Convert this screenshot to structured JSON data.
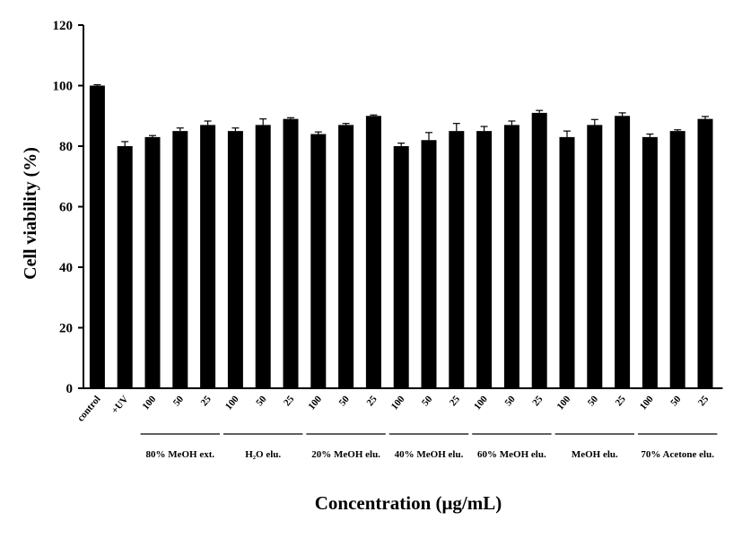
{
  "chart_data": {
    "type": "bar",
    "title": "",
    "ylabel": "Cell viability (%)",
    "xlabel": "Concentration (μg/mL)",
    "ylim": [
      0,
      120
    ],
    "yticks": [
      "0",
      "20",
      "40",
      "60",
      "80",
      "100",
      "120"
    ],
    "grid": false,
    "legend": "none",
    "bar_color": "#000000",
    "categories": [
      "control",
      "+UV",
      "100",
      "50",
      "25",
      "100",
      "50",
      "25",
      "100",
      "50",
      "25",
      "100",
      "50",
      "25",
      "100",
      "50",
      "25",
      "100",
      "50",
      "25",
      "100",
      "50",
      "25"
    ],
    "values": [
      100,
      80,
      83,
      85,
      87,
      85,
      87,
      89,
      84,
      87,
      90,
      80,
      82,
      85,
      85,
      87,
      91,
      83,
      87,
      90,
      83,
      85,
      89
    ],
    "errors": [
      0.3,
      1.5,
      0.5,
      1.0,
      1.3,
      1.0,
      2.0,
      0.4,
      0.7,
      0.5,
      0.3,
      1.0,
      2.5,
      2.5,
      1.5,
      1.3,
      0.8,
      2.0,
      1.8,
      1.0,
      1.0,
      0.4,
      0.8
    ],
    "groups": [
      {
        "label": "80% MeOH  ext.",
        "start": 2,
        "end": 4
      },
      {
        "label": "H₂O elu.",
        "start": 5,
        "end": 7
      },
      {
        "label": "20% MeOH  elu.",
        "start": 8,
        "end": 10
      },
      {
        "label": "40% MeOH  elu.",
        "start": 11,
        "end": 13
      },
      {
        "label": "60% MeOH  elu.",
        "start": 14,
        "end": 16
      },
      {
        "label": "MeOH  elu.",
        "start": 17,
        "end": 19
      },
      {
        "label": "70% Acetone elu.",
        "start": 20,
        "end": 22
      }
    ]
  }
}
